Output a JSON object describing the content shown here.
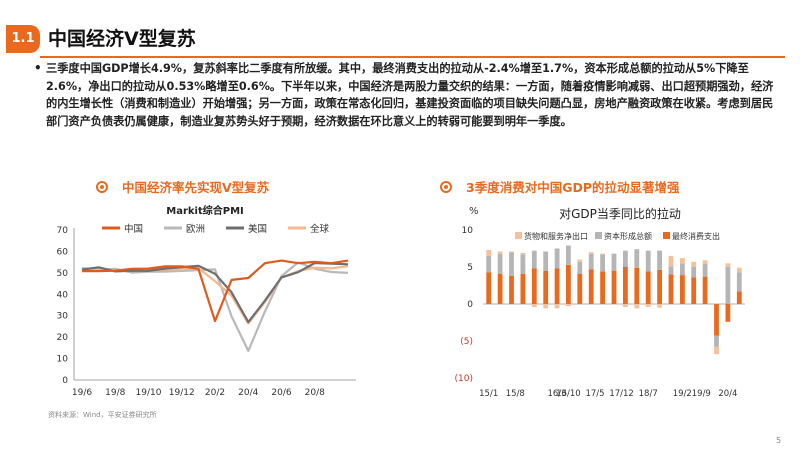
{
  "header": {
    "badge": "1.1",
    "title": "中国经济V型复苏"
  },
  "body": {
    "bullet": "•",
    "paragraph": "三季度中国GDP增长4.9%，复苏斜率比二季度有所放缓。其中，最终消费支出的拉动从-2.4%增至1.7%，资本形成总额的拉动从5%下降至2.6%，净出口的拉动从0.53%略增至0.6%。下半年以来，中国经济是两股力量交织的结果：一方面，随着疫情影响减弱、出口超预期强劲，经济的内生增长性（消费和制造业）开始增强；另一方面，政策在常态化回归，基建投资面临的项目缺失问题凸显，房地产融资政策在收紧。考虑到居民部门资产负债表仍属健康，制造业复苏势头好于预期，经济数据在环比意义上的转弱可能要到明年一季度。"
  },
  "left_chart_title": "中国经济率先实现V型复苏",
  "right_chart_title": "3季度消费对中国GDP的拉动显著增强",
  "source": "资料来源：Wind，平安证券研究所",
  "page_number": "5",
  "colors": {
    "accent": "#e96a1e",
    "china": "#e05a1b",
    "europe": "#b9b9b9",
    "usa": "#6f6f6f",
    "global": "#f6b98f",
    "net_export": "#f5c09a",
    "capital": "#b5b5b5",
    "consumption": "#e96a1e"
  },
  "chart_data": [
    {
      "type": "line",
      "title": "Markit综合PMI",
      "categories": [
        "19/6",
        "19/7",
        "19/8",
        "19/9",
        "19/10",
        "19/11",
        "19/12",
        "20/1",
        "20/2",
        "20/3",
        "20/4",
        "20/5",
        "20/6",
        "20/7",
        "20/8",
        "20/9",
        "20/10"
      ],
      "x_tick_labels": [
        "19/6",
        "19/8",
        "19/10",
        "19/12",
        "20/2",
        "20/4",
        "20/6",
        "20/8"
      ],
      "series": [
        {
          "name": "中国",
          "values": [
            50.8,
            50.8,
            51.0,
            51.9,
            52.0,
            53.0,
            53.0,
            51.9,
            27.5,
            46.7,
            47.6,
            54.5,
            55.7,
            54.5,
            55.1,
            54.5,
            55.7
          ]
        },
        {
          "name": "欧洲",
          "values": [
            52.2,
            51.5,
            51.9,
            50.1,
            50.6,
            50.6,
            50.9,
            51.3,
            51.6,
            29.7,
            13.6,
            31.9,
            48.5,
            54.9,
            51.9,
            50.4,
            50.0
          ]
        },
        {
          "name": "美国",
          "values": [
            51.5,
            52.6,
            50.7,
            51.0,
            50.9,
            52.0,
            52.7,
            53.3,
            49.6,
            40.9,
            27.0,
            37.0,
            47.9,
            50.3,
            54.6,
            54.3,
            54.0
          ]
        },
        {
          "name": "全球",
          "values": [
            51.2,
            51.3,
            51.3,
            51.2,
            51.0,
            51.6,
            51.7,
            52.2,
            46.1,
            39.3,
            26.3,
            36.3,
            47.8,
            50.8,
            52.4,
            52.1,
            53.1
          ]
        }
      ],
      "ylim": [
        0,
        70
      ],
      "y_ticks": [
        0,
        10,
        20,
        30,
        40,
        50,
        60,
        70
      ],
      "legend": "top"
    },
    {
      "type": "bar",
      "stacked": true,
      "title": "对GDP当季同比的拉动",
      "ylabel": "%",
      "categories": [
        "15/1",
        "15/2",
        "15/3",
        "15/4",
        "16/1",
        "16/2",
        "16/3",
        "16/4",
        "17/1",
        "17/2",
        "17/3",
        "17/4",
        "18/1",
        "18/2",
        "18/3",
        "18/4",
        "19/1",
        "19/2",
        "19/3",
        "19/4",
        "20/1",
        "20/2",
        "20/3"
      ],
      "x_tick_labels": [
        "15/1",
        "15/8",
        "16/3",
        "16/10",
        "17/5",
        "17/12",
        "18/7",
        "19/2",
        "19/9",
        "20/4"
      ],
      "series": [
        {
          "name": "货物和服务净出口",
          "values": [
            0.8,
            0.3,
            0.1,
            0.2,
            -0.4,
            -0.6,
            -0.6,
            -0.3,
            0.3,
            0.2,
            0.1,
            -0.1,
            -0.4,
            -0.6,
            -0.4,
            -0.5,
            1.4,
            0.7,
            0.7,
            0.5,
            -1.0,
            0.5,
            0.6
          ]
        },
        {
          "name": "资本形成总额",
          "values": [
            2.2,
            2.7,
            3.2,
            2.6,
            2.4,
            2.6,
            2.7,
            2.6,
            1.6,
            2.1,
            2.3,
            2.3,
            2.2,
            2.5,
            2.8,
            2.6,
            1.1,
            1.6,
            1.4,
            1.7,
            -1.5,
            5.0,
            2.6
          ]
        },
        {
          "name": "最终消费支出",
          "values": [
            4.3,
            4.1,
            3.8,
            4.1,
            4.8,
            4.5,
            4.8,
            5.3,
            4.1,
            4.7,
            4.4,
            4.5,
            5.0,
            4.9,
            4.4,
            4.6,
            4.0,
            3.9,
            3.6,
            3.7,
            -4.3,
            -2.4,
            1.7
          ]
        }
      ],
      "ylim": [
        -10,
        10
      ],
      "y_ticks": [
        10,
        5,
        0,
        -5,
        -10
      ],
      "y_tick_labels": [
        "10",
        "5",
        "0",
        "(5)",
        "(10)"
      ],
      "legend": "top"
    }
  ]
}
